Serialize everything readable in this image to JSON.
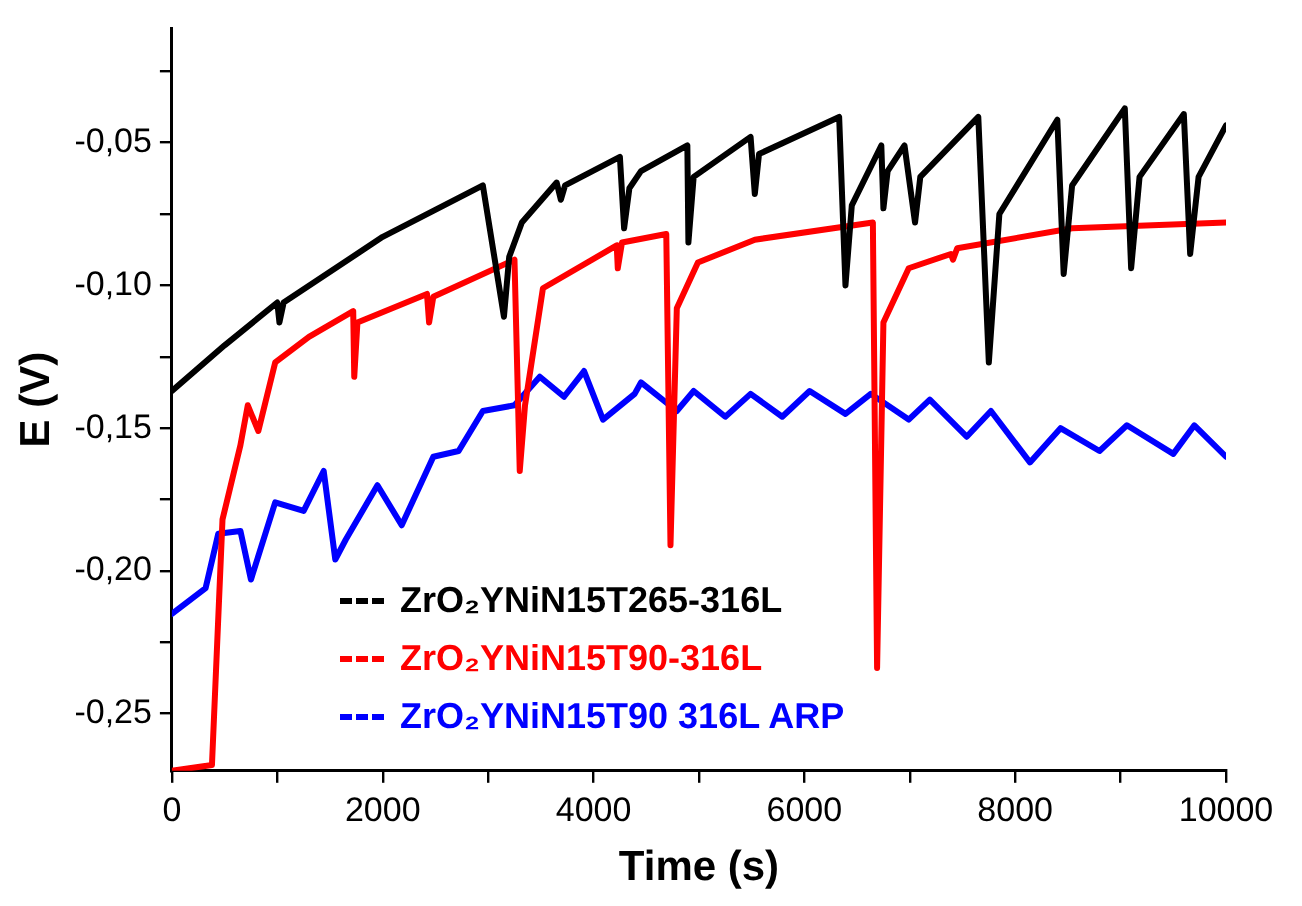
{
  "chart_data": {
    "type": "line",
    "xlabel": "Time (s)",
    "ylabel": "E (V)",
    "xlim": [
      0,
      10000
    ],
    "ylim": [
      -0.27,
      -0.01
    ],
    "xticks": [
      0,
      {
        "value": 1000,
        "label": null
      },
      2000,
      {
        "value": 3000,
        "label": null
      },
      4000,
      {
        "value": 5000,
        "label": null
      },
      6000,
      {
        "value": 7000,
        "label": null
      },
      8000,
      {
        "value": 9000,
        "label": null
      },
      10000
    ],
    "yticks": [
      {
        "value": -0.25,
        "label": "-0,25"
      },
      {
        "value": -0.225,
        "label": null
      },
      {
        "value": -0.2,
        "label": "-0,20"
      },
      {
        "value": -0.175,
        "label": null
      },
      {
        "value": -0.15,
        "label": "-0,15"
      },
      {
        "value": -0.125,
        "label": null
      },
      {
        "value": -0.1,
        "label": "-0,10"
      },
      {
        "value": -0.075,
        "label": null
      },
      {
        "value": -0.05,
        "label": "-0,05"
      },
      {
        "value": -0.025,
        "label": null
      }
    ],
    "grid": false,
    "legend": "bottom left",
    "marker": "none",
    "line_style": "solid",
    "series": [
      {
        "name": "ZrO₂YNiN15T265-316L",
        "color": "#000000",
        "x": [
          0,
          500,
          1000,
          1020,
          1060,
          2000,
          2950,
          3150,
          3200,
          3320,
          3650,
          3690,
          3730,
          4250,
          4290,
          4340,
          4450,
          4890,
          4900,
          4950,
          5490,
          5530,
          5570,
          6330,
          6390,
          6450,
          6730,
          6750,
          6790,
          6950,
          7050,
          7100,
          7650,
          7750,
          7850,
          8400,
          8460,
          8540,
          9040,
          9100,
          9180,
          9600,
          9660,
          9740,
          10000
        ],
        "values": [
          -0.137,
          -0.121,
          -0.106,
          -0.113,
          -0.106,
          -0.083,
          -0.065,
          -0.111,
          -0.09,
          -0.078,
          -0.064,
          -0.07,
          -0.065,
          -0.055,
          -0.08,
          -0.066,
          -0.06,
          -0.051,
          -0.085,
          -0.062,
          -0.048,
          -0.068,
          -0.054,
          -0.041,
          -0.1,
          -0.072,
          -0.051,
          -0.073,
          -0.06,
          -0.051,
          -0.078,
          -0.062,
          -0.041,
          -0.127,
          -0.075,
          -0.042,
          -0.096,
          -0.065,
          -0.038,
          -0.094,
          -0.062,
          -0.04,
          -0.089,
          -0.062,
          -0.044
        ]
      },
      {
        "name": "ZrO₂YNiN15T90-316L",
        "color": "#ff0000",
        "x": [
          0,
          380,
          480,
          650,
          720,
          820,
          980,
          1300,
          1720,
          1730,
          1760,
          2420,
          2440,
          2480,
          3250,
          3300,
          3350,
          3520,
          4220,
          4230,
          4270,
          4690,
          4730,
          4790,
          4990,
          5530,
          6650,
          6690,
          6750,
          6990,
          7390,
          7410,
          7450,
          8540,
          10000
        ],
        "values": [
          -0.27,
          -0.268,
          -0.182,
          -0.156,
          -0.142,
          -0.151,
          -0.127,
          -0.118,
          -0.109,
          -0.132,
          -0.113,
          -0.103,
          -0.113,
          -0.104,
          -0.091,
          -0.165,
          -0.142,
          -0.101,
          -0.086,
          -0.094,
          -0.085,
          -0.082,
          -0.191,
          -0.108,
          -0.092,
          -0.084,
          -0.078,
          -0.234,
          -0.113,
          -0.094,
          -0.089,
          -0.091,
          -0.087,
          -0.08,
          -0.078
        ]
      },
      {
        "name": "ZrO₂YNiN15T90 316L ARP",
        "color": "#0000ff",
        "x": [
          0,
          320,
          440,
          650,
          750,
          980,
          1250,
          1440,
          1550,
          1650,
          1950,
          2180,
          2480,
          2720,
          2950,
          3250,
          3490,
          3720,
          3910,
          4090,
          4390,
          4450,
          4790,
          4950,
          5250,
          5490,
          5790,
          6050,
          6390,
          6630,
          6990,
          7190,
          7540,
          7770,
          8140,
          8430,
          8800,
          9060,
          9500,
          9700,
          10000
        ],
        "values": [
          -0.215,
          -0.206,
          -0.187,
          -0.186,
          -0.203,
          -0.176,
          -0.179,
          -0.165,
          -0.196,
          -0.189,
          -0.17,
          -0.184,
          -0.16,
          -0.158,
          -0.144,
          -0.142,
          -0.132,
          -0.139,
          -0.13,
          -0.147,
          -0.138,
          -0.134,
          -0.144,
          -0.137,
          -0.146,
          -0.138,
          -0.146,
          -0.137,
          -0.145,
          -0.138,
          -0.147,
          -0.14,
          -0.153,
          -0.144,
          -0.162,
          -0.15,
          -0.158,
          -0.149,
          -0.159,
          -0.149,
          -0.16
        ]
      }
    ]
  }
}
